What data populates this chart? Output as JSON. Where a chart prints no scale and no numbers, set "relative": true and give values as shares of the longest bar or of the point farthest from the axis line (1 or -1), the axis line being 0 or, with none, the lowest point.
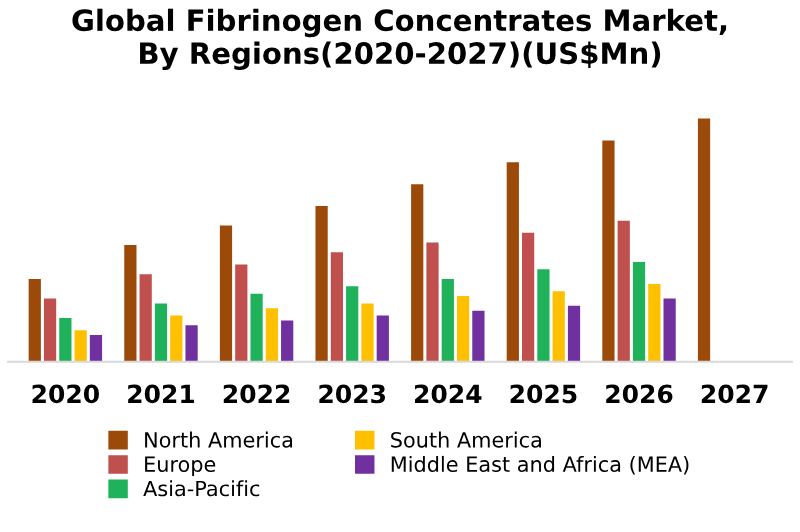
{
  "chart_data": {
    "type": "bar",
    "title": "Global Fibrinogen Concentrates Market,\nBy Regions(2020-2027)(US$Mn)",
    "relative": true,
    "categories": [
      "2020",
      "2021",
      "2022",
      "2023",
      "2024",
      "2025",
      "2026",
      "2027"
    ],
    "series": [
      {
        "name": "North America",
        "color": "#9c4a0a",
        "values": [
          0.34,
          0.48,
          0.56,
          0.64,
          0.73,
          0.82,
          0.91,
          1.0
        ]
      },
      {
        "name": "Europe",
        "color": "#c0504d",
        "values": [
          0.26,
          0.36,
          0.4,
          0.45,
          0.49,
          0.53,
          0.58,
          null
        ]
      },
      {
        "name": "Asia-Pacific",
        "color": "#1fb25a",
        "values": [
          0.18,
          0.24,
          0.28,
          0.31,
          0.34,
          0.38,
          0.41,
          null
        ]
      },
      {
        "name": "South America",
        "color": "#ffc000",
        "values": [
          0.13,
          0.19,
          0.22,
          0.24,
          0.27,
          0.29,
          0.32,
          null
        ]
      },
      {
        "name": "Middle East and Africa (MEA)",
        "color": "#7030a0",
        "values": [
          0.11,
          0.15,
          0.17,
          0.19,
          0.21,
          0.23,
          0.26,
          null
        ]
      }
    ],
    "legend": "bottom",
    "grid": false
  }
}
